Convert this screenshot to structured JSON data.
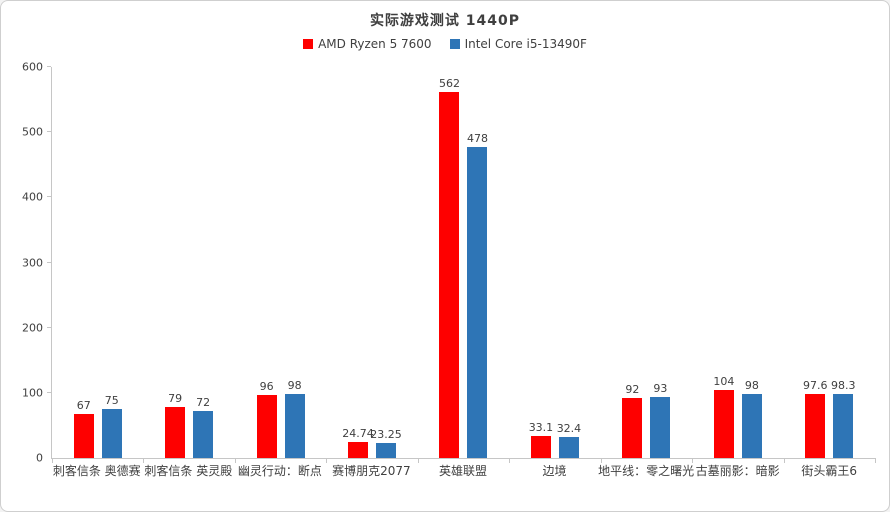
{
  "header": {
    "title": "实际游戏测试 1440P"
  },
  "chart_data": {
    "type": "bar",
    "title": "实际游戏测试 1440P",
    "categories": [
      "刺客信条 奥德赛",
      "刺客信条 英灵殿",
      "幽灵行动：断点",
      "赛博朋克2077",
      "英雄联盟",
      "边境",
      "地平线：零之曙光",
      "古墓丽影：暗影",
      "街头霸王6"
    ],
    "series": [
      {
        "name": "AMD Ryzen 5 7600",
        "color": "#fe0000",
        "values": [
          67,
          79,
          96,
          24.74,
          562,
          33.1,
          92,
          104,
          97.6
        ]
      },
      {
        "name": "Intel Core i5-13490F",
        "color": "#2e75b6",
        "values": [
          75,
          72,
          98,
          23.25,
          478,
          32.4,
          93,
          98,
          98.3
        ]
      }
    ],
    "ylim": [
      0,
      600
    ],
    "yticks": [
      0,
      100,
      200,
      300,
      400,
      500,
      600
    ],
    "grid": false,
    "legend_position": "top"
  }
}
